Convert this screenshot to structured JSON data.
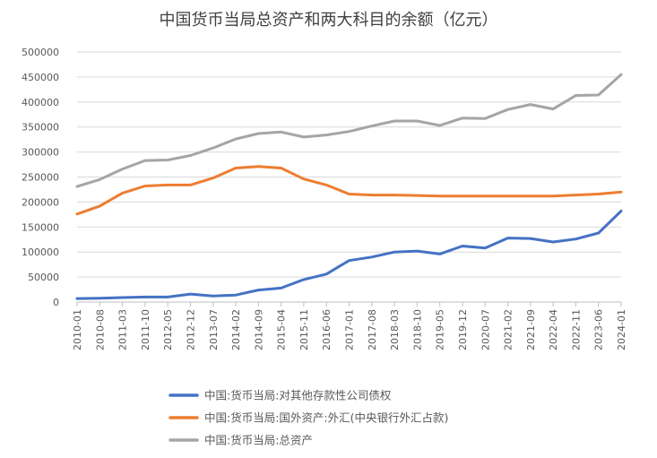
{
  "chart_data": {
    "type": "line",
    "title": "中国货币当局总资产和两大科目的余额（亿元）",
    "xlabel": "",
    "ylabel": "",
    "ylim": [
      0,
      500000
    ],
    "yticks": [
      "0",
      "50000",
      "100000",
      "150000",
      "200000",
      "250000",
      "300000",
      "350000",
      "400000",
      "450000",
      "500000"
    ],
    "xticks": [
      "2010-01",
      "2010-08",
      "2011-03",
      "2011-10",
      "2012-05",
      "2012-12",
      "2013-07",
      "2014-02",
      "2014-09",
      "2015-04",
      "2015-11",
      "2016-06",
      "2017-01",
      "2017-08",
      "2018-03",
      "2018-10",
      "2019-05",
      "2019-12",
      "2020-07",
      "2021-02",
      "2021-09",
      "2022-04",
      "2022-11",
      "2023-06",
      "2024-01"
    ],
    "legend_position": "bottom",
    "grid": true,
    "x": [
      "2010-01",
      "2010-08",
      "2011-03",
      "2011-10",
      "2012-05",
      "2012-12",
      "2013-07",
      "2014-02",
      "2014-09",
      "2015-04",
      "2015-11",
      "2016-06",
      "2017-01",
      "2017-08",
      "2018-03",
      "2018-10",
      "2019-05",
      "2019-12",
      "2020-07",
      "2021-02",
      "2021-09",
      "2022-04",
      "2022-11",
      "2023-06",
      "2024-01"
    ],
    "series": [
      {
        "name": "中国:货币当局:对其他存款性公司债权",
        "color": "#4472C4",
        "values": [
          7000,
          7500,
          9000,
          10000,
          10000,
          16000,
          12000,
          14000,
          24000,
          28000,
          45000,
          56000,
          83000,
          90000,
          100000,
          102000,
          96000,
          112000,
          108000,
          128000,
          127000,
          120000,
          126000,
          138000,
          182000
        ]
      },
      {
        "name": "中国:货币当局:国外资产:外汇(中央银行外汇占款)",
        "color": "#ED7D31",
        "values": [
          176000,
          192000,
          218000,
          232000,
          234000,
          234000,
          248000,
          268000,
          271000,
          268000,
          246000,
          234000,
          216000,
          214000,
          214000,
          213000,
          212000,
          212000,
          212000,
          212000,
          212000,
          212000,
          214000,
          216000,
          220000
        ]
      },
      {
        "name": "中国:货币当局:总资产",
        "color": "#A5A5A5",
        "values": [
          231000,
          245000,
          266000,
          283000,
          284000,
          293000,
          308000,
          326000,
          337000,
          340000,
          330000,
          334000,
          341000,
          352000,
          362000,
          362000,
          353000,
          368000,
          367000,
          385000,
          395000,
          386000,
          413000,
          414000,
          455000
        ]
      }
    ]
  }
}
